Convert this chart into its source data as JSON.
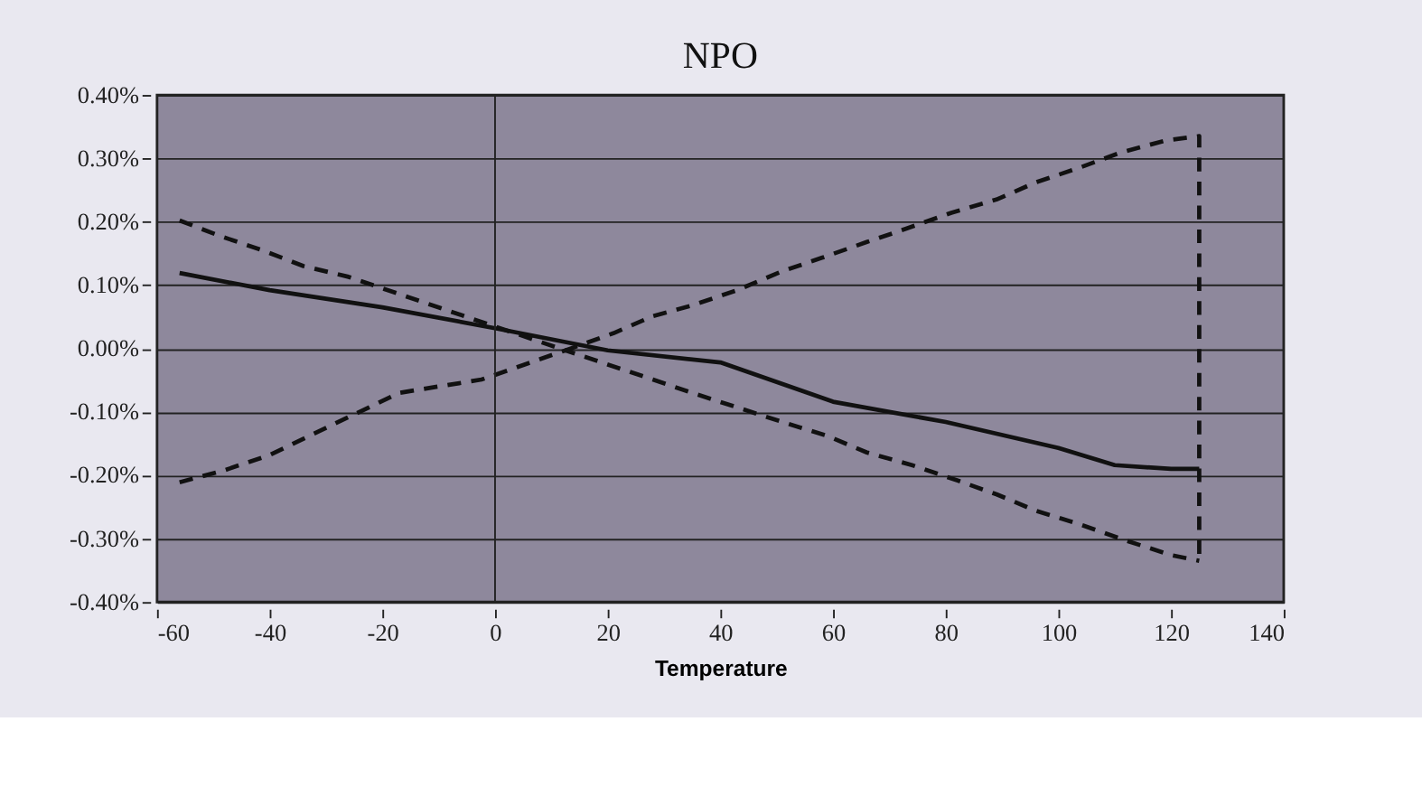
{
  "chart_data": {
    "type": "line",
    "title": "NPO",
    "xlabel": "Temperature",
    "xlim": [
      -60,
      140
    ],
    "xticks": [
      -60,
      -40,
      -20,
      0,
      20,
      40,
      60,
      80,
      100,
      120,
      140
    ],
    "ylim": [
      -0.4,
      0.4
    ],
    "yticks": [
      {
        "value": -0.4,
        "label": "-0.40%"
      },
      {
        "value": -0.3,
        "label": "-0.30%"
      },
      {
        "value": -0.2,
        "label": "-0.20%"
      },
      {
        "value": -0.1,
        "label": "-0.10%"
      },
      {
        "value": 0,
        "label": "0.00%"
      },
      {
        "value": 0.1,
        "label": "0.10%"
      },
      {
        "value": 0.2,
        "label": "0.20%"
      },
      {
        "value": 0.3,
        "label": "0.30%"
      },
      {
        "value": 0.4,
        "label": "0.40%"
      }
    ],
    "grid": "y",
    "legend": false,
    "ref_lines": [
      {
        "axis": "x",
        "value": 0,
        "color": "#222222",
        "line_style": "solid"
      }
    ],
    "marker": "none",
    "series": [
      {
        "color": "#111111",
        "line_style": "solid",
        "x": [
          -56,
          -40,
          -20,
          0,
          20,
          40,
          60,
          80,
          100,
          110,
          120,
          125
        ],
        "values": [
          0.119,
          0.092,
          0.065,
          0.032,
          -0.003,
          -0.022,
          -0.084,
          -0.116,
          -0.157,
          -0.184,
          -0.19,
          -0.19
        ]
      },
      {
        "color": "#111111",
        "line_style": "dashed",
        "x": [
          -56,
          -49,
          -41,
          -34,
          -26,
          12.5,
          21,
          28,
          35,
          43,
          51,
          58,
          66,
          73,
          81,
          89,
          96,
          104,
          111,
          119,
          125,
          125
        ],
        "values": [
          0.202,
          0.178,
          0.154,
          0.13,
          0.113,
          -0.003,
          0.024,
          0.051,
          0.068,
          0.092,
          0.122,
          0.143,
          0.168,
          0.189,
          0.214,
          0.235,
          0.262,
          0.286,
          0.309,
          0.328,
          0.335,
          -0.335
        ]
      },
      {
        "color": "#111111",
        "line_style": "dashed",
        "x": [
          -56,
          -48,
          -40,
          -33,
          -17,
          -2.4,
          5,
          12.5,
          28,
          35,
          51,
          59,
          66,
          74,
          82,
          89,
          96,
          104,
          112,
          120,
          125
        ],
        "values": [
          -0.211,
          -0.192,
          -0.168,
          -0.138,
          -0.07,
          -0.049,
          -0.026,
          -0.003,
          -0.049,
          -0.07,
          -0.116,
          -0.138,
          -0.164,
          -0.184,
          -0.208,
          -0.23,
          -0.256,
          -0.278,
          -0.303,
          -0.326,
          -0.335
        ]
      }
    ]
  }
}
